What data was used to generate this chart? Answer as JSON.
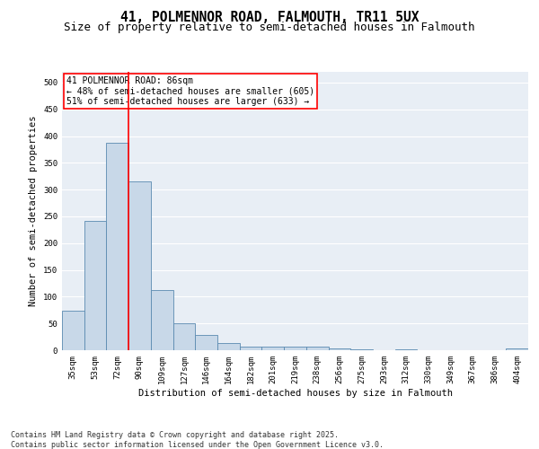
{
  "title_line1": "41, POLMENNOR ROAD, FALMOUTH, TR11 5UX",
  "title_line2": "Size of property relative to semi-detached houses in Falmouth",
  "xlabel": "Distribution of semi-detached houses by size in Falmouth",
  "ylabel": "Number of semi-detached properties",
  "categories": [
    "35sqm",
    "53sqm",
    "72sqm",
    "90sqm",
    "109sqm",
    "127sqm",
    "146sqm",
    "164sqm",
    "182sqm",
    "201sqm",
    "219sqm",
    "238sqm",
    "256sqm",
    "275sqm",
    "293sqm",
    "312sqm",
    "330sqm",
    "349sqm",
    "367sqm",
    "386sqm",
    "404sqm"
  ],
  "values": [
    73,
    242,
    388,
    315,
    113,
    50,
    29,
    13,
    7,
    7,
    7,
    6,
    4,
    1,
    0,
    1,
    0,
    0,
    0,
    0,
    3
  ],
  "bar_color": "#c8d8e8",
  "bar_edge_color": "#5a8ab0",
  "vline_color": "red",
  "annotation_text": "41 POLMENNOR ROAD: 86sqm\n← 48% of semi-detached houses are smaller (605)\n51% of semi-detached houses are larger (633) →",
  "annotation_box_color": "white",
  "annotation_box_edge_color": "red",
  "ylim": [
    0,
    520
  ],
  "yticks": [
    0,
    50,
    100,
    150,
    200,
    250,
    300,
    350,
    400,
    450,
    500
  ],
  "background_color": "#e8eef5",
  "footer_text": "Contains HM Land Registry data © Crown copyright and database right 2025.\nContains public sector information licensed under the Open Government Licence v3.0.",
  "title_fontsize": 10.5,
  "subtitle_fontsize": 9,
  "axis_label_fontsize": 7.5,
  "tick_fontsize": 6.5,
  "annotation_fontsize": 7,
  "footer_fontsize": 6
}
